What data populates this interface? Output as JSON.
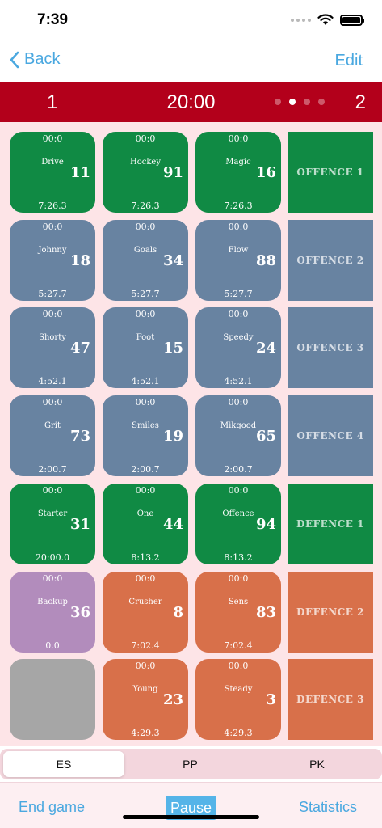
{
  "status": {
    "time": "7:39"
  },
  "nav": {
    "back_label": "Back",
    "edit_label": "Edit"
  },
  "score": {
    "home": "1",
    "clock": "20:00",
    "away": "2",
    "pages": 4,
    "active_page": 1
  },
  "colors": {
    "green": "#108a44",
    "blue_gray": "#6883a1",
    "purple": "#b28cbc",
    "orange": "#d8704a",
    "gray": "#a6a6a6",
    "red": "#b3001b",
    "accent": "#4aa8e0"
  },
  "rows": [
    {
      "label": "OFFENCE 1",
      "color": "green",
      "players": [
        {
          "top": "00:0",
          "name": "Drive",
          "number": "11",
          "time": "7:26.3",
          "color": "green"
        },
        {
          "top": "00:0",
          "name": "Hockey",
          "number": "91",
          "time": "7:26.3",
          "color": "green"
        },
        {
          "top": "00:0",
          "name": "Magic",
          "number": "16",
          "time": "7:26.3",
          "color": "green"
        }
      ]
    },
    {
      "label": "OFFENCE 2",
      "color": "blue_gray",
      "players": [
        {
          "top": "00:0",
          "name": "Johnny",
          "number": "18",
          "time": "5:27.7",
          "color": "blue_gray"
        },
        {
          "top": "00:0",
          "name": "Goals",
          "number": "34",
          "time": "5:27.7",
          "color": "blue_gray"
        },
        {
          "top": "00:0",
          "name": "Flow",
          "number": "88",
          "time": "5:27.7",
          "color": "blue_gray"
        }
      ]
    },
    {
      "label": "OFFENCE 3",
      "color": "blue_gray",
      "players": [
        {
          "top": "00:0",
          "name": "Shorty",
          "number": "47",
          "time": "4:52.1",
          "color": "blue_gray"
        },
        {
          "top": "00:0",
          "name": "Foot",
          "number": "15",
          "time": "4:52.1",
          "color": "blue_gray"
        },
        {
          "top": "00:0",
          "name": "Speedy",
          "number": "24",
          "time": "4:52.1",
          "color": "blue_gray"
        }
      ]
    },
    {
      "label": "OFFENCE 4",
      "color": "blue_gray",
      "players": [
        {
          "top": "00:0",
          "name": "Grit",
          "number": "73",
          "time": "2:00.7",
          "color": "blue_gray"
        },
        {
          "top": "00:0",
          "name": "Smiles",
          "number": "19",
          "time": "2:00.7",
          "color": "blue_gray"
        },
        {
          "top": "00:0",
          "name": "Mikgood",
          "number": "65",
          "time": "2:00.7",
          "color": "blue_gray"
        }
      ]
    },
    {
      "label": "DEFENCE 1",
      "color": "green",
      "players": [
        {
          "top": "00:0",
          "name": "Starter",
          "number": "31",
          "time": "20:00.0",
          "color": "green"
        },
        {
          "top": "00:0",
          "name": "One",
          "number": "44",
          "time": "8:13.2",
          "color": "green"
        },
        {
          "top": "00:0",
          "name": "Offence",
          "number": "94",
          "time": "8:13.2",
          "color": "green"
        }
      ]
    },
    {
      "label": "DEFENCE 2",
      "color": "orange",
      "players": [
        {
          "top": "00:0",
          "name": "Backup",
          "number": "36",
          "time": "0.0",
          "color": "purple"
        },
        {
          "top": "00:0",
          "name": "Crusher",
          "number": "8",
          "time": "7:02.4",
          "color": "orange"
        },
        {
          "top": "00:0",
          "name": "Sens",
          "number": "83",
          "time": "7:02.4",
          "color": "orange"
        }
      ]
    },
    {
      "label": "DEFENCE 3",
      "color": "orange",
      "players": [
        {
          "top": "",
          "name": "",
          "number": "",
          "time": "",
          "color": "gray"
        },
        {
          "top": "00:0",
          "name": "Young",
          "number": "23",
          "time": "4:29.3",
          "color": "orange"
        },
        {
          "top": "00:0",
          "name": "Steady",
          "number": "3",
          "time": "4:29.3",
          "color": "orange"
        }
      ]
    }
  ],
  "segments": [
    {
      "label": "ES",
      "selected": true
    },
    {
      "label": "PP",
      "selected": false
    },
    {
      "label": "PK",
      "selected": false
    }
  ],
  "tabbar": {
    "end_game_label": "End game",
    "pause_label": "Pause",
    "statistics_label": "Statistics"
  }
}
